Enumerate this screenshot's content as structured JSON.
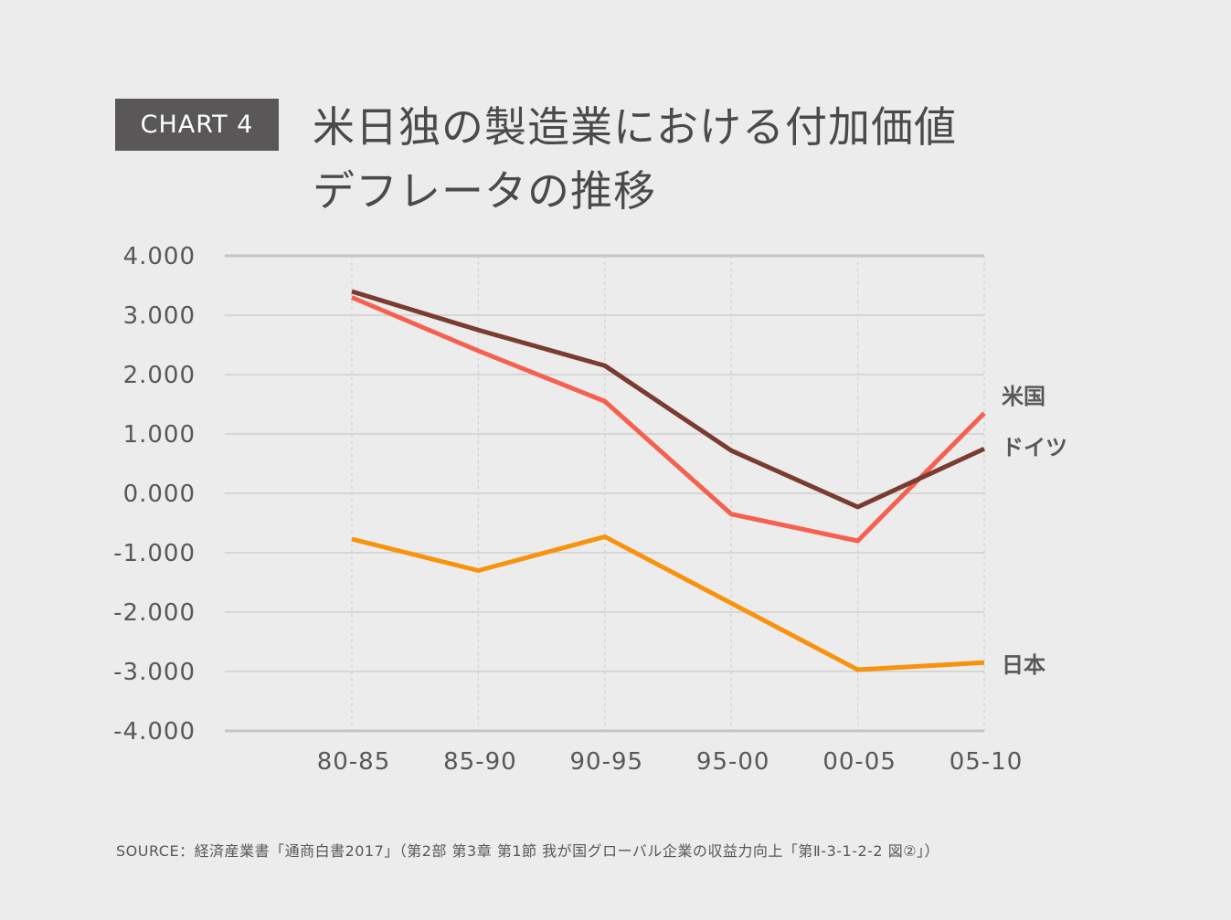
{
  "badge": "CHART 4",
  "title": {
    "line1": "米日独の製造業における付加価値",
    "line2": "デフレータの推移"
  },
  "source": "SOURCE：経済産業書「通商白書2017」（第2部 第3章 第1節 我が国グローバル企業の収益力向上「第Ⅱ-3-1-2-2 図②」）",
  "colors": {
    "usa": "#f5604f",
    "germany": "#7a3b30",
    "japan": "#f7930e",
    "grid": "#cfcfcf",
    "axis": "#c4c4c4",
    "text": "#595757"
  },
  "chart_data": {
    "type": "line",
    "title": "米日独の製造業における付加価値デフレータの推移",
    "xlabel": "",
    "ylabel": "",
    "categories": [
      "80-85",
      "85-90",
      "90-95",
      "95-00",
      "00-05",
      "05-10"
    ],
    "yticks": [
      "4.000",
      "3.000",
      "2.000",
      "1.000",
      "0.000",
      "-1.000",
      "-2.000",
      "-3.000",
      "-4.000"
    ],
    "ylim": [
      -4,
      4
    ],
    "grid": true,
    "legend": "line-end labels (right)",
    "series": [
      {
        "name": "米国",
        "key": "usa",
        "values": [
          3.3,
          2.4,
          1.55,
          -0.35,
          -0.8,
          1.35
        ]
      },
      {
        "name": "ドイツ",
        "key": "germany",
        "values": [
          3.4,
          2.75,
          2.15,
          0.72,
          -0.23,
          0.75
        ]
      },
      {
        "name": "日本",
        "key": "japan",
        "values": [
          -0.77,
          -1.3,
          -0.73,
          -1.85,
          -2.97,
          -2.85
        ]
      }
    ]
  }
}
